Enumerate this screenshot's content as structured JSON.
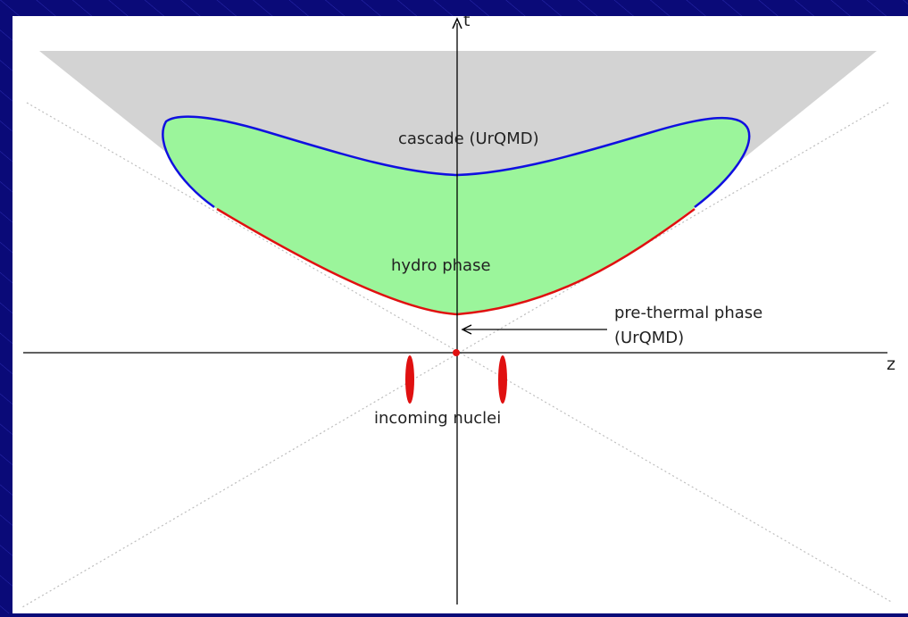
{
  "diagram": {
    "axis_time_label": "t",
    "axis_space_label": "z",
    "cascade_label": "cascade (UrQMD)",
    "hydro_label": "hydro phase",
    "prethermal_label_line1": "pre-thermal phase",
    "prethermal_label_line2": "(UrQMD)",
    "nuclei_label": "incoming nuclei"
  },
  "colors": {
    "slide_background": "#0a0a78",
    "cascade_fill": "#d3d3d3",
    "hydro_fill": "#9bf59b",
    "freezeout_boundary": "#1010e0",
    "hydro_start_boundary": "#e01010",
    "nuclei": "#e01010"
  }
}
